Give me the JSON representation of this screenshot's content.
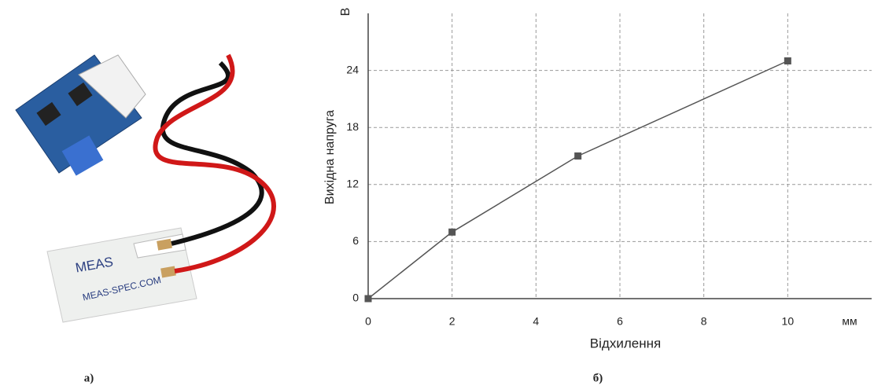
{
  "chart_data": {
    "type": "line",
    "y_label": "Вихідна напруга",
    "x_label": "Відхилення",
    "y_unit": "В",
    "x_unit": "мм",
    "x": [
      0,
      2,
      5,
      10
    ],
    "values": [
      0,
      7,
      15,
      25
    ],
    "color": "#555555",
    "xlim": [
      0,
      12
    ],
    "xticks": [
      0,
      2,
      4,
      6,
      8,
      10
    ],
    "ylim": [
      0,
      30
    ],
    "yticks": [
      0,
      6,
      12,
      18,
      24
    ],
    "grid": true
  },
  "photo": {
    "brand": "MEAS",
    "site": "MEAS-SPEC.COM"
  },
  "captions": [
    "а)",
    "б)"
  ]
}
